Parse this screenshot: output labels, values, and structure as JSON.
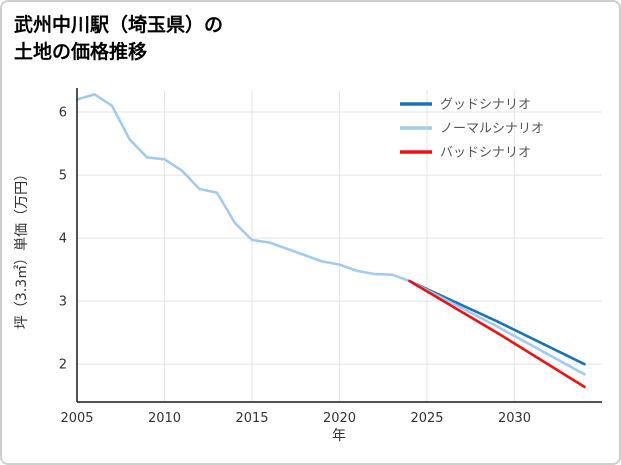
{
  "card": {
    "background": "#ffffff",
    "border_color": "#cfcfcf"
  },
  "title_line1": "武州中川駅（埼玉県）の",
  "title_line2": "土地の価格推移",
  "chart_data": {
    "type": "line",
    "title": "武州中川駅（埼玉県）の土地の価格推移",
    "xlabel": "年",
    "ylabel": "坪（3.3㎡）単価（万円）",
    "xlim": [
      2005,
      2035
    ],
    "ylim": [
      1.4,
      6.35
    ],
    "xticks": [
      2005,
      2010,
      2015,
      2020,
      2025,
      2030
    ],
    "yticks": [
      2,
      3,
      4,
      5,
      6
    ],
    "grid": true,
    "legend_position": "top-right",
    "series": [
      {
        "id": "historical",
        "color": "#a2cbf0",
        "x": [
          2005,
          2006,
          2007,
          2008,
          2009,
          2010,
          2011,
          2012,
          2013,
          2014,
          2015,
          2016,
          2017,
          2018,
          2019,
          2020,
          2021,
          2022,
          2023,
          2024
        ],
        "y": [
          6.2,
          6.28,
          6.1,
          5.57,
          5.28,
          5.25,
          5.07,
          4.78,
          4.72,
          4.25,
          3.97,
          3.93,
          3.83,
          3.73,
          3.63,
          3.58,
          3.48,
          3.43,
          3.42,
          3.32
        ]
      },
      {
        "id": "good",
        "color": "#1b72b8",
        "x": [
          2024,
          2029,
          2034
        ],
        "y": [
          3.32,
          2.68,
          2.0
        ]
      },
      {
        "id": "normal",
        "color": "#a2cbf0",
        "x": [
          2024,
          2029,
          2034
        ],
        "y": [
          3.32,
          2.6,
          1.84
        ]
      },
      {
        "id": "bad",
        "color": "#f01010",
        "x": [
          2024,
          2029,
          2034
        ],
        "y": [
          3.32,
          2.5,
          1.64
        ]
      }
    ],
    "legend": [
      {
        "id": "good",
        "label": "グッドシナリオ",
        "color": "#1b72b8"
      },
      {
        "id": "normal",
        "label": "ノーマルシナリオ",
        "color": "#a2cbf0"
      },
      {
        "id": "bad",
        "label": "バッドシナリオ",
        "color": "#f01010"
      }
    ]
  }
}
